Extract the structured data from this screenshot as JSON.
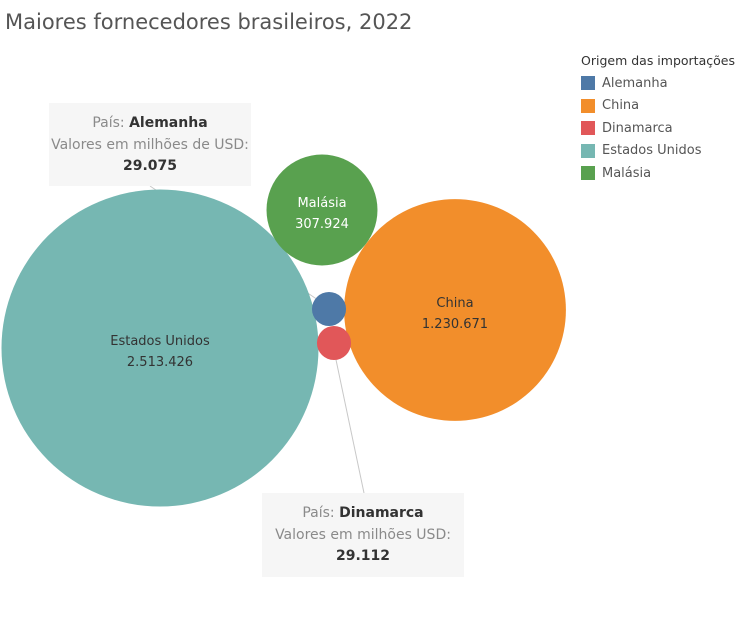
{
  "chart_data": {
    "type": "bubble",
    "title": "Maiores fornecedores brasileiros, 2022",
    "legend": {
      "title": "Origem das importações",
      "position": "top-right",
      "items": [
        {
          "name": "Alemanha",
          "color": "#4e79a7"
        },
        {
          "name": "China",
          "color": "#f28e2b"
        },
        {
          "name": "Dinamarca",
          "color": "#e15759"
        },
        {
          "name": "Estados Unidos",
          "color": "#76b7b2"
        },
        {
          "name": "Malásia",
          "color": "#59a14f"
        }
      ]
    },
    "bubbles": [
      {
        "name": "Estados Unidos",
        "value": 2513426,
        "value_label": "2.513.426",
        "color": "#76b7b2",
        "label_color": "#333333",
        "show_label": true
      },
      {
        "name": "China",
        "value": 1230671,
        "value_label": "1.230.671",
        "color": "#f28e2b",
        "label_color": "#333333",
        "show_label": true
      },
      {
        "name": "Malásia",
        "value": 307924,
        "value_label": "307.924",
        "color": "#59a14f",
        "label_color": "#ffffff",
        "show_label": true
      },
      {
        "name": "Alemanha",
        "value": 29075,
        "value_label": "29.075",
        "color": "#4e79a7",
        "show_label": false
      },
      {
        "name": "Dinamarca",
        "value": 29112,
        "value_label": "29.112",
        "color": "#e15759",
        "show_label": false
      }
    ],
    "callouts": [
      {
        "country_label": "País:",
        "country": "Alemanha",
        "value_label": "Valores em milhões de USD:",
        "value": "29.075"
      },
      {
        "country_label": "País:",
        "country": "Dinamarca",
        "value_label": "Valores em milhões USD:",
        "value": "29.112"
      }
    ]
  }
}
